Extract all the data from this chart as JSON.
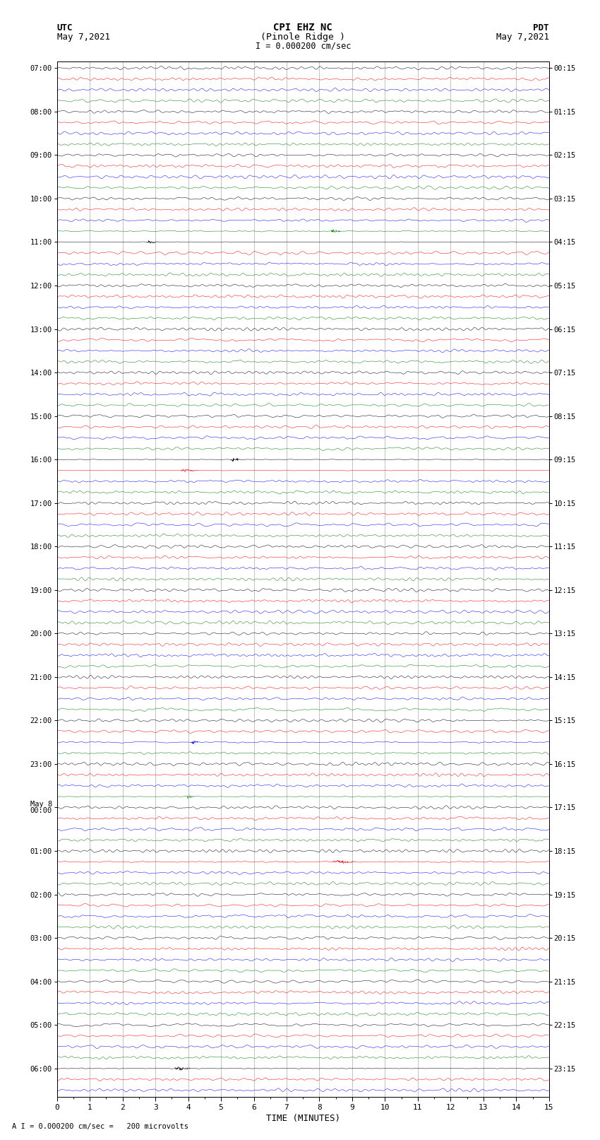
{
  "title_line1": "CPI EHZ NC",
  "title_line2": "(Pinole Ridge )",
  "scale_label": "I = 0.000200 cm/sec",
  "footer_label": "A I = 0.000200 cm/sec =   200 microvolts",
  "xlabel": "TIME (MINUTES)",
  "utc_line1": "UTC",
  "utc_line2": "May 7,2021",
  "pdt_line1": "PDT",
  "pdt_line2": "May 7,2021",
  "left_times_utc": [
    "07:00",
    "",
    "",
    "",
    "08:00",
    "",
    "",
    "",
    "09:00",
    "",
    "",
    "",
    "10:00",
    "",
    "",
    "",
    "11:00",
    "",
    "",
    "",
    "12:00",
    "",
    "",
    "",
    "13:00",
    "",
    "",
    "",
    "14:00",
    "",
    "",
    "",
    "15:00",
    "",
    "",
    "",
    "16:00",
    "",
    "",
    "",
    "17:00",
    "",
    "",
    "",
    "18:00",
    "",
    "",
    "",
    "19:00",
    "",
    "",
    "",
    "20:00",
    "",
    "",
    "",
    "21:00",
    "",
    "",
    "",
    "22:00",
    "",
    "",
    "",
    "23:00",
    "",
    "",
    "",
    "May 8\n00:00",
    "",
    "",
    "",
    "01:00",
    "",
    "",
    "",
    "02:00",
    "",
    "",
    "",
    "03:00",
    "",
    "",
    "",
    "04:00",
    "",
    "",
    "",
    "05:00",
    "",
    "",
    "",
    "06:00",
    "",
    ""
  ],
  "right_times_pdt": [
    "00:15",
    "",
    "",
    "",
    "01:15",
    "",
    "",
    "",
    "02:15",
    "",
    "",
    "",
    "03:15",
    "",
    "",
    "",
    "04:15",
    "",
    "",
    "",
    "05:15",
    "",
    "",
    "",
    "06:15",
    "",
    "",
    "",
    "07:15",
    "",
    "",
    "",
    "08:15",
    "",
    "",
    "",
    "09:15",
    "",
    "",
    "",
    "10:15",
    "",
    "",
    "",
    "11:15",
    "",
    "",
    "",
    "12:15",
    "",
    "",
    "",
    "13:15",
    "",
    "",
    "",
    "14:15",
    "",
    "",
    "",
    "15:15",
    "",
    "",
    "",
    "16:15",
    "",
    "",
    "",
    "17:15",
    "",
    "",
    "",
    "18:15",
    "",
    "",
    "",
    "19:15",
    "",
    "",
    "",
    "20:15",
    "",
    "",
    "",
    "21:15",
    "",
    "",
    "",
    "22:15",
    "",
    "",
    "",
    "23:15",
    "",
    ""
  ],
  "colors_cycle": [
    "black",
    "red",
    "blue",
    "green"
  ],
  "num_rows": 95,
  "num_cols": 2000,
  "x_min": 0,
  "x_max": 15,
  "background_color": "white",
  "trace_amplitude": 0.38,
  "figsize": [
    8.5,
    16.13
  ],
  "dpi": 100,
  "vline_color": "#aaaaaa",
  "hline_color": "#cccccc"
}
